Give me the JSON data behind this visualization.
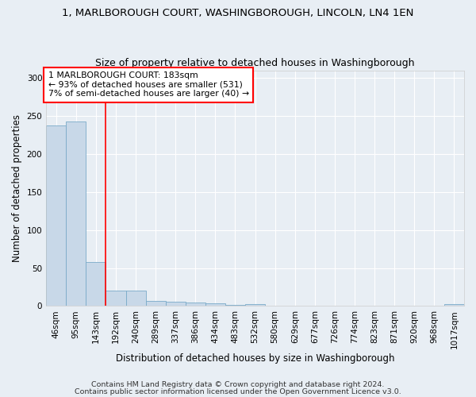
{
  "title": "1, MARLBOROUGH COURT, WASHINGBOROUGH, LINCOLN, LN4 1EN",
  "subtitle": "Size of property relative to detached houses in Washingborough",
  "xlabel": "Distribution of detached houses by size in Washingborough",
  "ylabel": "Number of detached properties",
  "bar_labels": [
    "46sqm",
    "95sqm",
    "143sqm",
    "192sqm",
    "240sqm",
    "289sqm",
    "337sqm",
    "386sqm",
    "434sqm",
    "483sqm",
    "532sqm",
    "580sqm",
    "629sqm",
    "677sqm",
    "726sqm",
    "774sqm",
    "823sqm",
    "871sqm",
    "920sqm",
    "968sqm",
    "1017sqm"
  ],
  "bar_values": [
    238,
    243,
    58,
    20,
    20,
    7,
    6,
    5,
    4,
    2,
    3,
    0,
    0,
    0,
    0,
    0,
    0,
    0,
    0,
    0,
    3
  ],
  "bar_color": "#c8d8e8",
  "bar_edge_color": "#7aaac8",
  "property_line_x": 2.5,
  "annotation_text": "1 MARLBOROUGH COURT: 183sqm\n← 93% of detached houses are smaller (531)\n7% of semi-detached houses are larger (40) →",
  "annotation_box_color": "white",
  "annotation_box_edge_color": "red",
  "property_line_color": "red",
  "footer_line1": "Contains HM Land Registry data © Crown copyright and database right 2024.",
  "footer_line2": "Contains public sector information licensed under the Open Government Licence v3.0.",
  "ylim": [
    0,
    310
  ],
  "yticks": [
    0,
    50,
    100,
    150,
    200,
    250,
    300
  ],
  "background_color": "#e8eef4",
  "grid_color": "#ffffff",
  "title_fontsize": 9.5,
  "subtitle_fontsize": 9,
  "axis_label_fontsize": 8.5,
  "tick_fontsize": 7.5,
  "annotation_fontsize": 7.8,
  "footer_fontsize": 6.8
}
